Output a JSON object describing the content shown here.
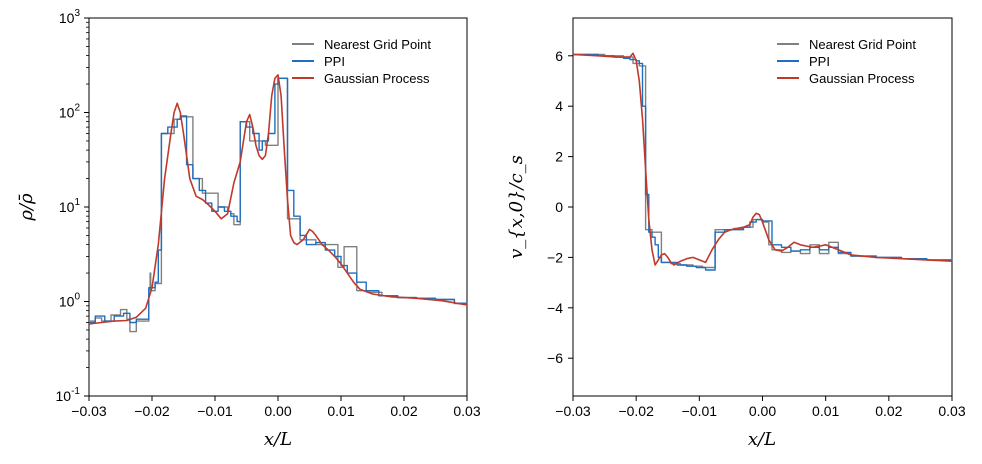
{
  "colors": {
    "ngp": "#808080",
    "ppi": "#1f6fbf",
    "gp": "#c0392b"
  },
  "chart_data": [
    {
      "type": "line",
      "panel": "left",
      "xlabel": "x/L",
      "ylabel": "ρ/ρ̄",
      "yscale": "log",
      "xlim": [
        -0.03,
        0.03
      ],
      "ylim": [
        0.1,
        1000
      ],
      "xticks": [
        -0.03,
        -0.02,
        -0.01,
        0.0,
        0.01,
        0.02,
        0.03
      ],
      "xtick_labels": [
        "−0.03",
        "−0.02",
        "−0.01",
        "0.00",
        "0.01",
        "0.02",
        "0.03"
      ],
      "yticks": [
        0.1,
        1,
        10,
        100,
        1000
      ],
      "ytick_base": [
        "10",
        "10",
        "10",
        "10",
        "10"
      ],
      "ytick_exp": [
        "-1",
        "0",
        "1",
        "2",
        "3"
      ],
      "legend_position": "top-right",
      "series": [
        {
          "name": "Nearest Grid Point",
          "color_key": "ngp",
          "step": true,
          "x": [
            -0.03,
            -0.029,
            -0.028,
            -0.0265,
            -0.025,
            -0.024,
            -0.0235,
            -0.0225,
            -0.0205,
            -0.0203,
            -0.0202,
            -0.0195,
            -0.0185,
            -0.0165,
            -0.0155,
            -0.0135,
            -0.012,
            -0.0095,
            -0.008,
            -0.0075,
            -0.007,
            -0.006,
            -0.0045,
            -0.003,
            -0.002,
            0.0,
            0.0015,
            0.0035,
            0.006,
            0.0085,
            0.0095,
            0.0105,
            0.0125,
            0.0145,
            0.0165,
            0.019,
            0.022,
            0.025,
            0.028,
            0.03
          ],
          "y": [
            0.62,
            0.67,
            0.62,
            0.72,
            0.82,
            0.65,
            0.48,
            0.62,
            1.3,
            2.0,
            1.3,
            1.55,
            60.0,
            85.0,
            90.0,
            20.0,
            14.0,
            10.0,
            9.0,
            8.5,
            6.5,
            80.0,
            50.0,
            50.0,
            45.0,
            230.0,
            7.5,
            4.5,
            4.0,
            4.0,
            2.3,
            3.8,
            1.3,
            1.25,
            1.15,
            1.1,
            1.08,
            1.05,
            0.95,
            0.9
          ]
        },
        {
          "name": "PPI",
          "color_key": "ppi",
          "step": true,
          "x": [
            -0.03,
            -0.029,
            -0.0275,
            -0.026,
            -0.0245,
            -0.0235,
            -0.0225,
            -0.0205,
            -0.0195,
            -0.019,
            -0.0185,
            -0.0175,
            -0.016,
            -0.0155,
            -0.0145,
            -0.0135,
            -0.0125,
            -0.0115,
            -0.0105,
            -0.0095,
            -0.0085,
            -0.0075,
            -0.0065,
            -0.006,
            -0.005,
            -0.004,
            -0.003,
            -0.0025,
            -0.0015,
            -0.0005,
            0.0,
            0.0015,
            0.0025,
            0.0035,
            0.0045,
            0.006,
            0.0075,
            0.009,
            0.01,
            0.011,
            0.0125,
            0.014,
            0.016,
            0.019,
            0.022,
            0.025,
            0.028,
            0.03
          ],
          "y": [
            0.6,
            0.7,
            0.62,
            0.7,
            0.75,
            0.6,
            0.65,
            1.4,
            1.6,
            3.5,
            60.0,
            70.0,
            85.0,
            92.0,
            28.0,
            20.0,
            15.0,
            11.0,
            9.0,
            10.0,
            9.0,
            8.0,
            7.0,
            80.0,
            70.0,
            60.0,
            40.0,
            50.0,
            60.0,
            200.0,
            230.0,
            15.0,
            8.0,
            5.0,
            4.0,
            4.2,
            3.5,
            3.0,
            2.4,
            2.0,
            1.6,
            1.3,
            1.15,
            1.1,
            1.08,
            1.05,
            0.96,
            0.9
          ]
        },
        {
          "name": "Gaussian Process",
          "color_key": "gp",
          "step": false,
          "x": [
            -0.03,
            -0.028,
            -0.026,
            -0.024,
            -0.0225,
            -0.021,
            -0.02,
            -0.019,
            -0.018,
            -0.017,
            -0.0165,
            -0.016,
            -0.0155,
            -0.015,
            -0.0145,
            -0.014,
            -0.013,
            -0.012,
            -0.011,
            -0.01,
            -0.009,
            -0.008,
            -0.007,
            -0.006,
            -0.005,
            -0.0045,
            -0.004,
            -0.0035,
            -0.003,
            -0.0025,
            -0.002,
            -0.0015,
            -0.001,
            -0.0005,
            0.0,
            0.0005,
            0.001,
            0.0015,
            0.002,
            0.0025,
            0.003,
            0.004,
            0.005,
            0.0055,
            0.006,
            0.007,
            0.008,
            0.009,
            0.01,
            0.011,
            0.012,
            0.013,
            0.015,
            0.018,
            0.022,
            0.026,
            0.03
          ],
          "y": [
            0.58,
            0.6,
            0.62,
            0.63,
            0.68,
            0.85,
            1.4,
            4.0,
            20.0,
            60.0,
            100.0,
            125.0,
            100.0,
            60.0,
            35.0,
            20.0,
            13.0,
            12.0,
            10.5,
            9.0,
            7.5,
            8.5,
            18.0,
            30.0,
            80.0,
            95.0,
            70.0,
            45.0,
            35.0,
            32.0,
            35.0,
            60.0,
            150.0,
            230.0,
            250.0,
            150.0,
            40.0,
            12.0,
            5.0,
            4.2,
            4.0,
            4.5,
            5.8,
            5.5,
            5.0,
            4.0,
            3.5,
            3.0,
            2.5,
            2.0,
            1.6,
            1.35,
            1.2,
            1.12,
            1.08,
            1.02,
            0.92
          ]
        }
      ]
    },
    {
      "type": "line",
      "panel": "right",
      "xlabel": "x/L",
      "ylabel": "v_{x,0}/c_s",
      "yscale": "linear",
      "xlim": [
        -0.03,
        0.03
      ],
      "ylim": [
        -7.5,
        7.5
      ],
      "xticks": [
        -0.03,
        -0.02,
        -0.01,
        0.0,
        0.01,
        0.02,
        0.03
      ],
      "xtick_labels": [
        "−0.03",
        "−0.02",
        "−0.01",
        "0.00",
        "0.01",
        "0.02",
        "0.03"
      ],
      "yticks": [
        -6,
        -4,
        -2,
        0,
        2,
        4,
        6
      ],
      "ytick_labels": [
        "−6",
        "−4",
        "−2",
        "0",
        "2",
        "4",
        "6"
      ],
      "legend_position": "top-right",
      "series": [
        {
          "name": "Nearest Grid Point",
          "color_key": "ngp",
          "step": true,
          "x": [
            -0.03,
            -0.025,
            -0.022,
            -0.0205,
            -0.0195,
            -0.0185,
            -0.0175,
            -0.016,
            -0.0145,
            -0.013,
            -0.011,
            -0.0095,
            -0.0075,
            -0.006,
            -0.0045,
            -0.003,
            -0.0015,
            0.0,
            0.001,
            0.0015,
            0.003,
            0.0045,
            0.006,
            0.0075,
            0.009,
            0.0105,
            0.012,
            0.014,
            0.018,
            0.022,
            0.026,
            0.03
          ],
          "y": [
            6.05,
            6.0,
            5.95,
            5.7,
            5.6,
            -0.9,
            -1.0,
            -2.2,
            -2.25,
            -2.3,
            -2.35,
            -2.4,
            -0.9,
            -0.9,
            -0.85,
            -0.8,
            -0.5,
            -0.6,
            -1.5,
            -1.7,
            -1.8,
            -1.75,
            -1.85,
            -1.5,
            -1.85,
            -1.4,
            -1.85,
            -1.95,
            -2.0,
            -2.05,
            -2.1,
            -2.15
          ]
        },
        {
          "name": "PPI",
          "color_key": "ppi",
          "step": true,
          "x": [
            -0.03,
            -0.026,
            -0.0235,
            -0.022,
            -0.021,
            -0.02,
            -0.0195,
            -0.019,
            -0.0185,
            -0.018,
            -0.0175,
            -0.017,
            -0.0165,
            -0.016,
            -0.015,
            -0.0135,
            -0.012,
            -0.0105,
            -0.009,
            -0.0075,
            -0.006,
            -0.0045,
            -0.003,
            -0.002,
            -0.001,
            0.0,
            0.0015,
            0.003,
            0.0045,
            0.006,
            0.0075,
            0.009,
            0.0105,
            0.012,
            0.014,
            0.018,
            0.022,
            0.026,
            0.03
          ],
          "y": [
            6.05,
            6.0,
            5.95,
            5.9,
            5.85,
            5.8,
            5.7,
            4.0,
            0.5,
            -1.0,
            -1.2,
            -1.5,
            -2.0,
            -2.2,
            -2.2,
            -2.3,
            -2.35,
            -2.4,
            -2.5,
            -1.0,
            -0.9,
            -0.9,
            -0.8,
            -0.6,
            -0.5,
            -0.55,
            -1.5,
            -1.6,
            -1.75,
            -1.7,
            -1.6,
            -1.7,
            -1.6,
            -1.8,
            -1.95,
            -2.0,
            -2.05,
            -2.1,
            -2.15
          ]
        },
        {
          "name": "Gaussian Process",
          "color_key": "gp",
          "step": false,
          "x": [
            -0.03,
            -0.026,
            -0.023,
            -0.021,
            -0.0205,
            -0.02,
            -0.0195,
            -0.019,
            -0.0185,
            -0.018,
            -0.0175,
            -0.017,
            -0.0165,
            -0.016,
            -0.0155,
            -0.015,
            -0.0145,
            -0.014,
            -0.013,
            -0.012,
            -0.011,
            -0.01,
            -0.009,
            -0.008,
            -0.007,
            -0.006,
            -0.005,
            -0.004,
            -0.003,
            -0.002,
            -0.0015,
            -0.001,
            -0.0005,
            0.0,
            0.001,
            0.002,
            0.003,
            0.004,
            0.005,
            0.006,
            0.007,
            0.008,
            0.009,
            0.01,
            0.012,
            0.014,
            0.018,
            0.022,
            0.026,
            0.03
          ],
          "y": [
            6.05,
            6.0,
            5.95,
            5.95,
            6.1,
            5.8,
            5.0,
            3.5,
            1.5,
            -0.5,
            -1.7,
            -2.3,
            -2.1,
            -1.9,
            -1.85,
            -2.0,
            -2.2,
            -2.3,
            -2.15,
            -2.05,
            -2.0,
            -2.1,
            -2.2,
            -1.7,
            -1.3,
            -1.0,
            -0.9,
            -0.85,
            -0.8,
            -0.7,
            -0.4,
            -0.25,
            -0.3,
            -0.6,
            -1.3,
            -1.7,
            -1.75,
            -1.6,
            -1.4,
            -1.5,
            -1.55,
            -1.6,
            -1.55,
            -1.5,
            -1.7,
            -1.9,
            -2.0,
            -2.05,
            -2.1,
            -2.15
          ]
        }
      ]
    }
  ]
}
